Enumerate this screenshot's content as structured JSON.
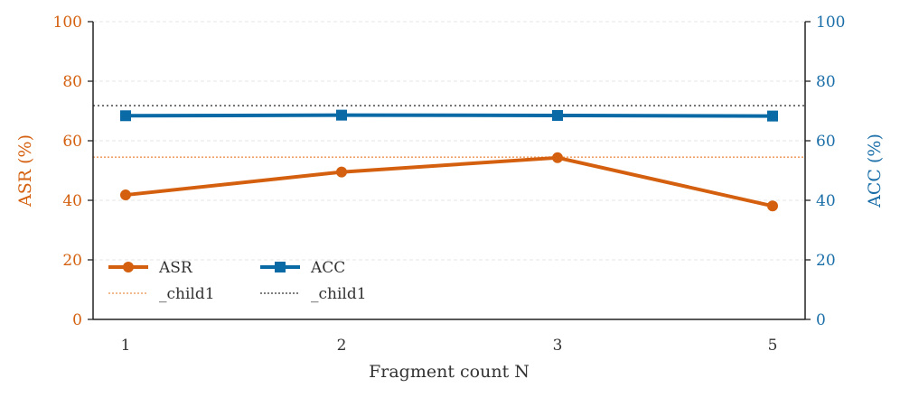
{
  "chart_data": {
    "type": "line",
    "categories": [
      "1",
      "2",
      "3",
      "5"
    ],
    "xlabel": "Fragment count N",
    "y_left": {
      "label": "ASR (%)",
      "lim": [
        0,
        100
      ],
      "ticks": [
        0,
        20,
        40,
        60,
        80,
        100
      ],
      "color": "#d4600f"
    },
    "y_right": {
      "label": "ACC (%)",
      "lim": [
        0,
        100
      ],
      "ticks": [
        0,
        20,
        40,
        60,
        80,
        100
      ],
      "color": "#1a6ea8"
    },
    "grid": true,
    "legend_position": "lower-left",
    "series": [
      {
        "name": "ASR",
        "axis": "left",
        "marker": "circle",
        "color": "#d4600f",
        "values": [
          41.8,
          49.5,
          54.3,
          38.1
        ]
      },
      {
        "name": "ACC",
        "axis": "right",
        "marker": "square",
        "color": "#0a6aa6",
        "values": [
          68.4,
          68.6,
          68.5,
          68.3
        ]
      }
    ],
    "reference_lines": [
      {
        "name": "_child1",
        "axis": "left",
        "value": 54.5,
        "color": "#f0a46a",
        "style": "dotted"
      },
      {
        "name": "_child1",
        "axis": "right",
        "value": 71.8,
        "color": "#555555",
        "style": "dotted"
      }
    ]
  }
}
